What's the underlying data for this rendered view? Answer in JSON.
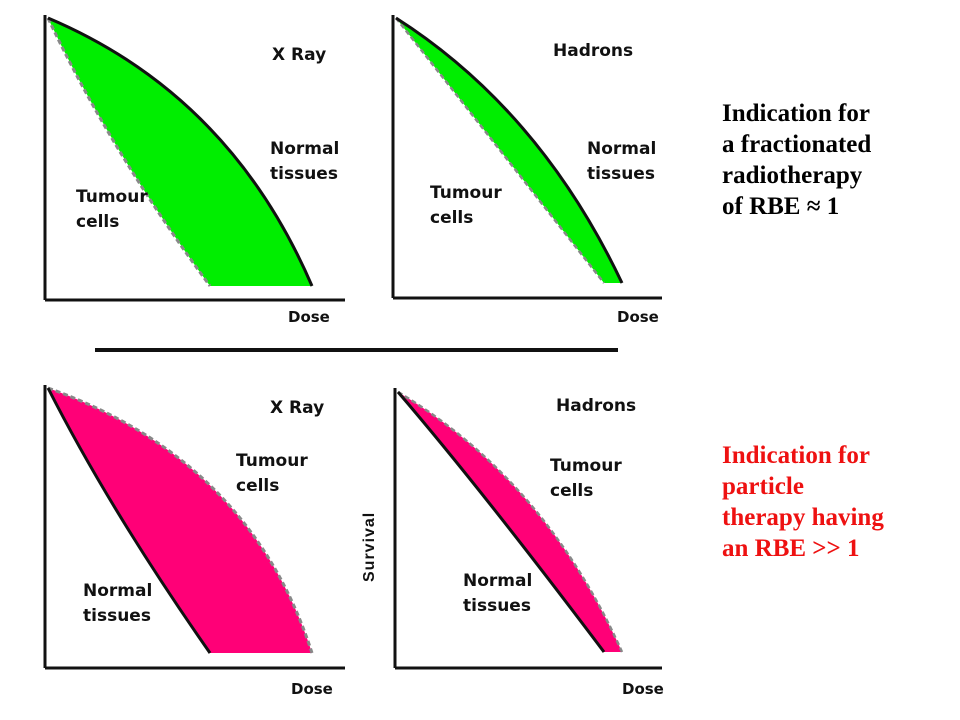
{
  "colors": {
    "top_fill": "#00ee00",
    "bottom_fill": "#ff0077",
    "axis": "#111111",
    "dashed_curve": "#888888",
    "text_top": "#000000",
    "text_bottom": "#ee1111"
  },
  "panels": {
    "top_left": {
      "title": "X Ray",
      "label_upper": [
        "Normal",
        "tissues"
      ],
      "label_lower": [
        "Tumour",
        "cells"
      ],
      "xlabel": "Dose"
    },
    "top_right": {
      "title": "Hadrons",
      "label_upper": [
        "Normal",
        "tissues"
      ],
      "label_lower": [
        "Tumour",
        "cells"
      ],
      "xlabel": "Dose"
    },
    "bottom_left": {
      "title": "X Ray",
      "label_upper": [
        "Tumour",
        "cells"
      ],
      "label_lower": [
        "Normal",
        "tissues"
      ],
      "xlabel": "Dose"
    },
    "bottom_right": {
      "title": "Hadrons",
      "label_upper": [
        "Tumour",
        "cells"
      ],
      "label_lower": [
        "Normal",
        "tissues"
      ],
      "xlabel": "Dose",
      "ylabel": "Survival"
    }
  },
  "indication_top": [
    "Indication for",
    "a fractionated",
    "radiotherapy",
    "of RBE ≈ 1"
  ],
  "indication_bottom": [
    "Indication for",
    "particle",
    "therapy having",
    "an RBE >> 1"
  ]
}
